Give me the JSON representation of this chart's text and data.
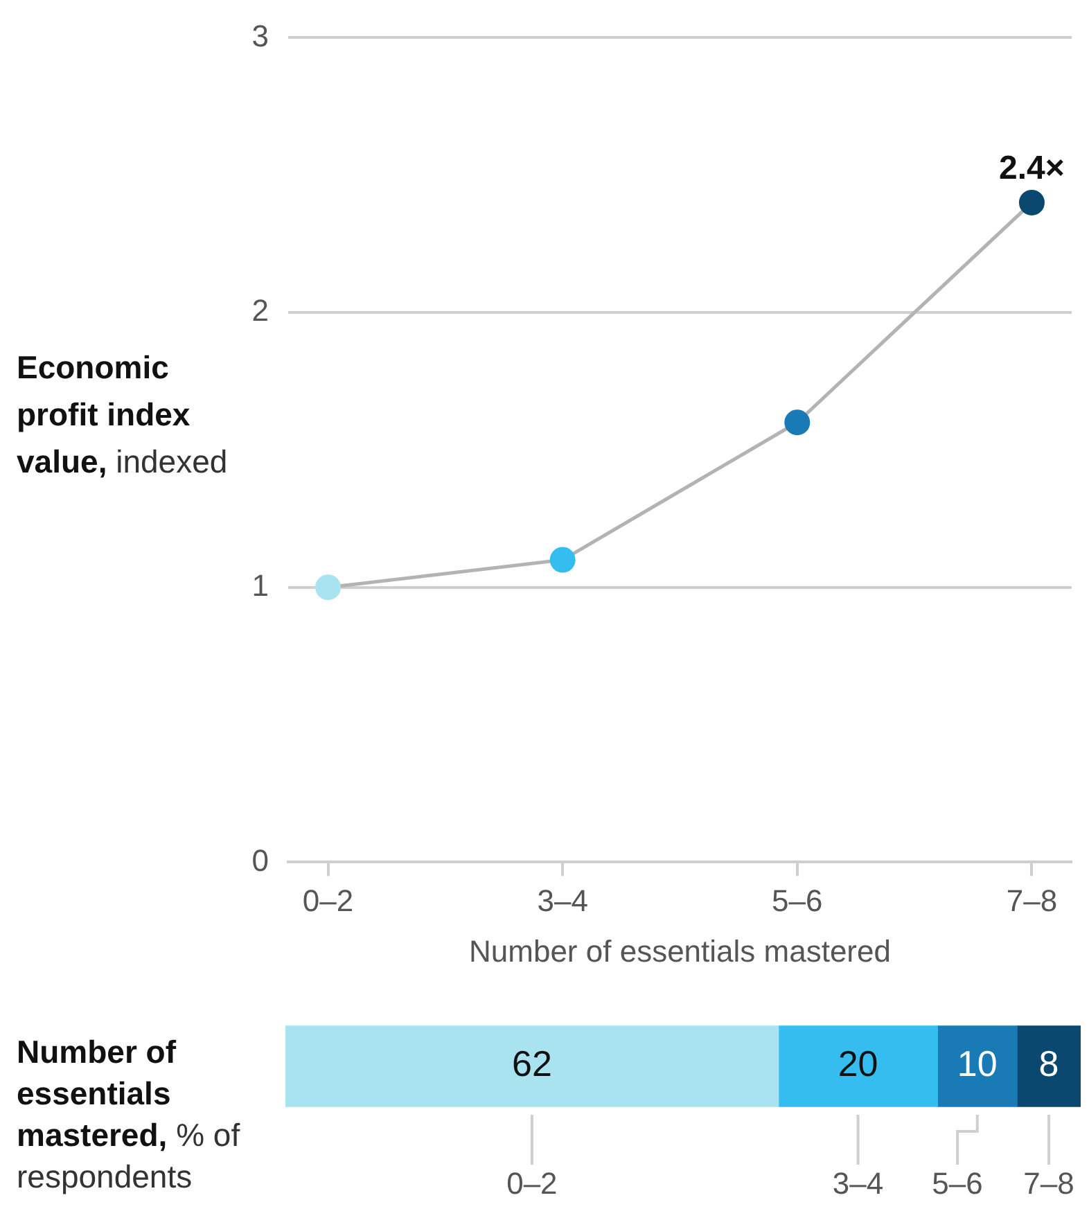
{
  "chart_data": [
    {
      "type": "line",
      "categories": [
        "0–2",
        "3–4",
        "5–6",
        "7–8"
      ],
      "series": [
        {
          "color": "#b3b3b3",
          "colors": [
            "#a8e3ef",
            "#35bdf0",
            "#1a7ab5",
            "#0b4870"
          ],
          "values": [
            1,
            1.1,
            1.6,
            2.4
          ]
        }
      ],
      "ylim": [
        0,
        3
      ],
      "yticks": [
        0,
        1,
        2,
        3
      ],
      "grid": "y",
      "marker": "circle",
      "line_style": "solid",
      "xlabel": "Number of essentials mastered",
      "ylabel": "Economic profit index value, indexed",
      "annotations": [
        {
          "text": "2.4×",
          "x": "7–8",
          "y": 2.4
        }
      ]
    },
    {
      "type": "bar",
      "orientation": "horizontal",
      "stacked": true,
      "categories": [
        null
      ],
      "series": [
        {
          "name": "0–2",
          "color": "#a8e3ef",
          "values": [
            62
          ]
        },
        {
          "name": "3–4",
          "color": "#35bdf0",
          "values": [
            20
          ]
        },
        {
          "name": "5–6",
          "color": "#1a7ab5",
          "values": [
            10
          ]
        },
        {
          "name": "7–8",
          "color": "#0b4870",
          "values": [
            8
          ]
        }
      ],
      "xlim": [
        0,
        100
      ],
      "tick_labels": false,
      "data_labels": true,
      "legend": "bottom",
      "ylabel": "Number of essentials mastered, % of respondents"
    }
  ]
}
